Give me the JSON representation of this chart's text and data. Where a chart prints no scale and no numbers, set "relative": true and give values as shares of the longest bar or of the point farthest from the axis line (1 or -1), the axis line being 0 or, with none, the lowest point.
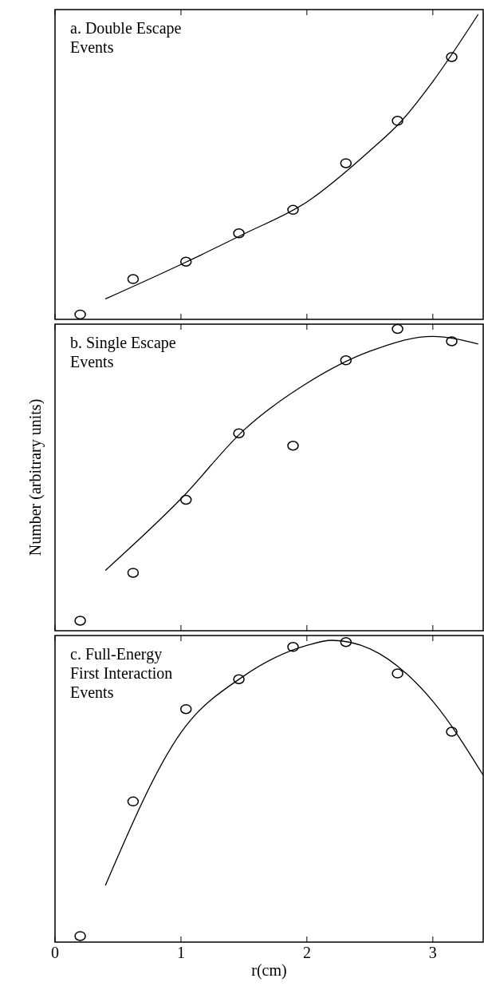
{
  "chart_data": [
    {
      "type": "scatter",
      "title": "a. Double Escape Events",
      "relative": true,
      "xlim": [
        0,
        3.4
      ],
      "xticks": [
        0,
        1,
        2,
        3
      ],
      "tick_labels": false,
      "marker": "circle",
      "series": [
        {
          "color": "#000000",
          "x": [
            0.2,
            0.62,
            1.04,
            1.46,
            1.89,
            2.31,
            2.72,
            3.15
          ],
          "values": [
            0.016,
            0.132,
            0.189,
            0.282,
            0.359,
            0.512,
            0.651,
            0.86
          ]
        },
        {
          "type": "line",
          "color": "#000000",
          "marker": "none",
          "x": [
            0.4,
            1.0,
            1.5,
            2.0,
            2.5,
            2.75,
            3.0,
            3.36
          ],
          "values": [
            0.067,
            0.18,
            0.28,
            0.385,
            0.553,
            0.65,
            0.78,
            1.0
          ]
        }
      ]
    },
    {
      "type": "scatter",
      "title": "b. Single Escape Events",
      "ylabel": "Number (arbitrary units)",
      "relative": true,
      "xlim": [
        0,
        3.4
      ],
      "xticks": [
        0,
        1,
        2,
        3
      ],
      "tick_labels": false,
      "marker": "circle",
      "series": [
        {
          "color": "#000000",
          "x": [
            0.2,
            0.62,
            1.04,
            1.46,
            1.89,
            2.31,
            2.72,
            3.15
          ],
          "values": [
            0.033,
            0.192,
            0.434,
            0.654,
            0.613,
            0.896,
            1,
            0.959
          ]
        },
        {
          "type": "line",
          "color": "#000000",
          "marker": "none",
          "x": [
            0.4,
            1.0,
            1.5,
            2.0,
            2.5,
            3.0,
            3.36
          ],
          "values": [
            0.2,
            0.437,
            0.665,
            0.82,
            0.926,
            0.975,
            0.95
          ]
        }
      ]
    },
    {
      "type": "scatter",
      "title": "c. Full-Energy First Interaction Events",
      "xlabel": "r(cm)",
      "relative": true,
      "xlim": [
        0,
        3.4
      ],
      "xticks": [
        0,
        1,
        2,
        3
      ],
      "tick_labels": "x",
      "marker": "circle",
      "series": [
        {
          "color": "#000000",
          "x": [
            0.2,
            0.62,
            1.04,
            1.46,
            1.89,
            2.31,
            2.72,
            3.15
          ],
          "values": [
            0.02,
            0.466,
            0.772,
            0.871,
            0.978,
            0.994,
            0.89,
            0.697
          ]
        },
        {
          "type": "line",
          "color": "#000000",
          "marker": "none",
          "x": [
            0.4,
            1.0,
            1.5,
            2.0,
            2.2,
            2.5,
            3.0,
            3.4
          ],
          "values": [
            0.188,
            0.694,
            0.882,
            0.983,
            1,
            0.972,
            0.798,
            0.553
          ]
        }
      ]
    }
  ]
}
